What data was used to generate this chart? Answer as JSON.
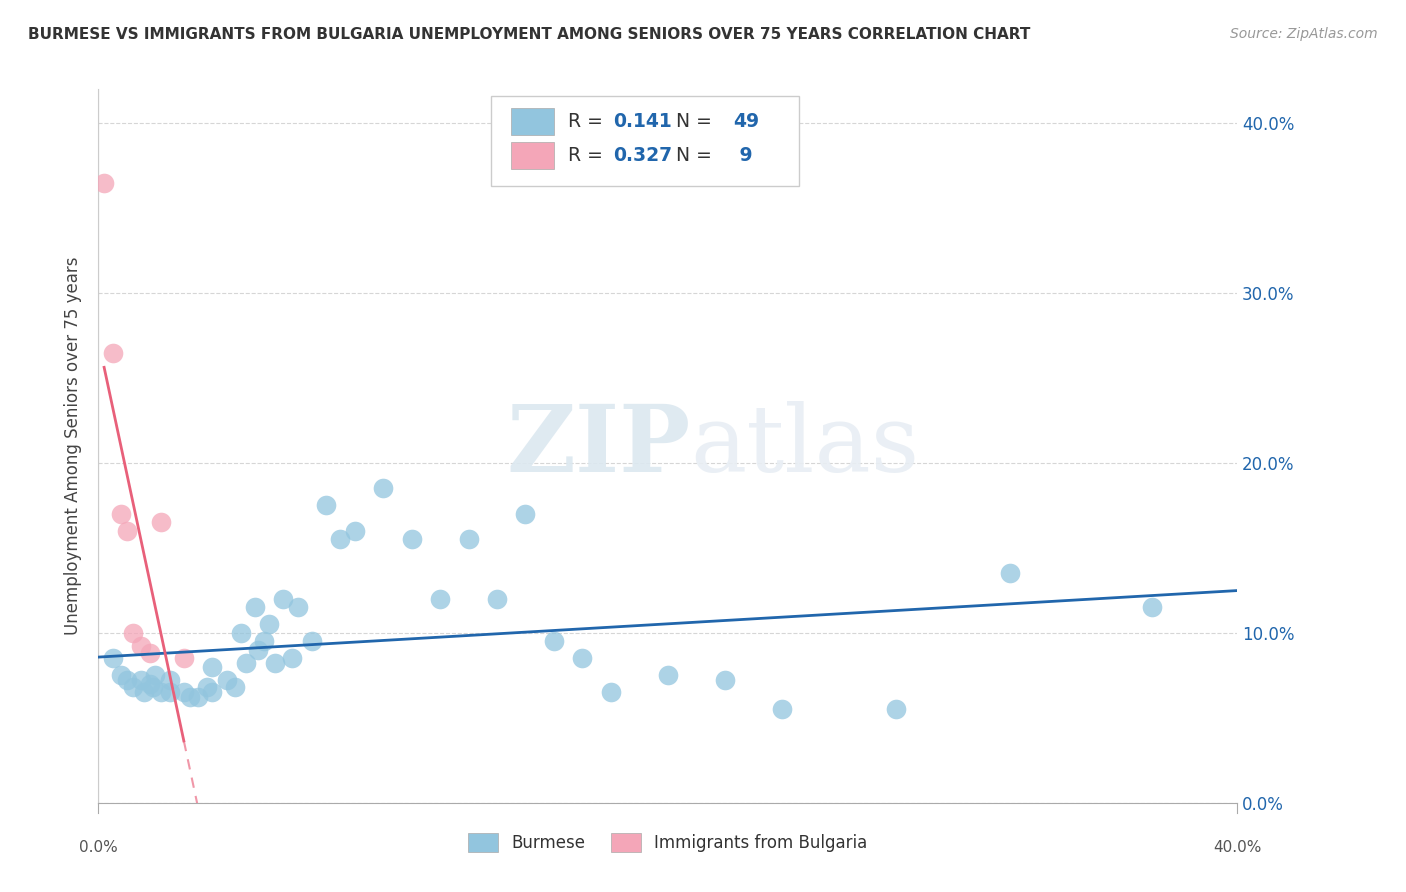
{
  "title": "BURMESE VS IMMIGRANTS FROM BULGARIA UNEMPLOYMENT AMONG SENIORS OVER 75 YEARS CORRELATION CHART",
  "source": "Source: ZipAtlas.com",
  "ylabel": "Unemployment Among Seniors over 75 years",
  "xlim": [
    0.0,
    0.4
  ],
  "ylim": [
    0.0,
    0.42
  ],
  "yticks": [
    0.0,
    0.1,
    0.2,
    0.3,
    0.4
  ],
  "ytick_labels": [
    "0.0%",
    "10.0%",
    "20.0%",
    "30.0%",
    "40.0%"
  ],
  "R_blue": 0.141,
  "N_blue": 49,
  "R_pink": 0.327,
  "N_pink": 9,
  "color_blue": "#92c5de",
  "color_pink": "#f4a6b8",
  "color_blue_line": "#2166ac",
  "color_pink_line": "#e8607a",
  "watermark_zip": "ZIP",
  "watermark_atlas": "atlas",
  "legend_label_blue": "Burmese",
  "legend_label_pink": "Immigrants from Bulgaria",
  "background_color": "#ffffff",
  "grid_color": "#cccccc",
  "blue_scatter_x": [
    0.005,
    0.008,
    0.01,
    0.012,
    0.015,
    0.016,
    0.018,
    0.019,
    0.02,
    0.022,
    0.025,
    0.025,
    0.03,
    0.032,
    0.035,
    0.038,
    0.04,
    0.04,
    0.045,
    0.048,
    0.05,
    0.052,
    0.055,
    0.056,
    0.058,
    0.06,
    0.062,
    0.065,
    0.068,
    0.07,
    0.075,
    0.08,
    0.085,
    0.09,
    0.1,
    0.11,
    0.12,
    0.13,
    0.14,
    0.15,
    0.16,
    0.17,
    0.18,
    0.2,
    0.22,
    0.24,
    0.28,
    0.32,
    0.37
  ],
  "blue_scatter_y": [
    0.085,
    0.075,
    0.072,
    0.068,
    0.072,
    0.065,
    0.07,
    0.068,
    0.075,
    0.065,
    0.072,
    0.065,
    0.065,
    0.062,
    0.062,
    0.068,
    0.08,
    0.065,
    0.072,
    0.068,
    0.1,
    0.082,
    0.115,
    0.09,
    0.095,
    0.105,
    0.082,
    0.12,
    0.085,
    0.115,
    0.095,
    0.175,
    0.155,
    0.16,
    0.185,
    0.155,
    0.12,
    0.155,
    0.12,
    0.17,
    0.095,
    0.085,
    0.065,
    0.075,
    0.072,
    0.055,
    0.055,
    0.135,
    0.115
  ],
  "pink_scatter_x": [
    0.002,
    0.005,
    0.008,
    0.01,
    0.012,
    0.015,
    0.018,
    0.022,
    0.03
  ],
  "pink_scatter_y": [
    0.365,
    0.265,
    0.17,
    0.16,
    0.1,
    0.092,
    0.088,
    0.165,
    0.085
  ]
}
